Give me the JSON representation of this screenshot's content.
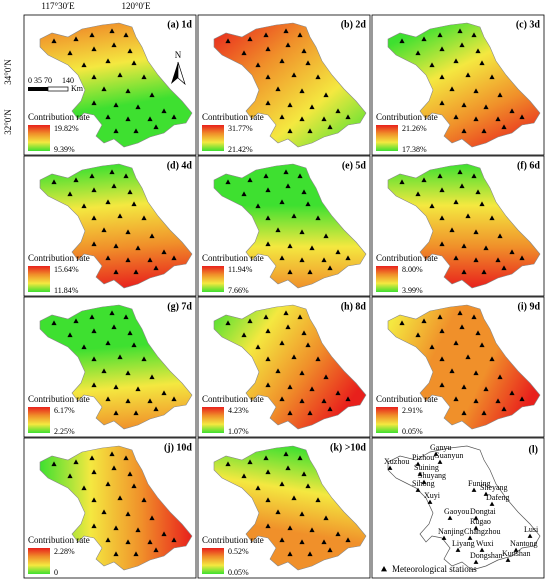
{
  "axes": {
    "top": [
      "117°30′E",
      "120°0′E"
    ],
    "left": [
      "34°0′N",
      "32°0′N"
    ]
  },
  "scale_bar": {
    "ticks": "0 35 70",
    "end": "140",
    "unit": "Km"
  },
  "north": "N",
  "panels": [
    {
      "label": "(a) 1d",
      "legend_title": "Contribution rate",
      "max": "19.82%",
      "min": "9.39%"
    },
    {
      "label": "(b) 2d",
      "legend_title": "Contribution rate",
      "max": "31.77%",
      "min": "21.42%"
    },
    {
      "label": "(c) 3d",
      "legend_title": "Contribution rate",
      "max": "21.26%",
      "min": "17.38%"
    },
    {
      "label": "(d) 4d",
      "legend_title": "Contribution rate",
      "max": "15.64%",
      "min": "11.84%"
    },
    {
      "label": "(e) 5d",
      "legend_title": "Contribution rate",
      "max": "11.94%",
      "min": "7.66%"
    },
    {
      "label": "(f) 6d",
      "legend_title": "Contribution rate",
      "max": "8.00%",
      "min": "3.99%"
    },
    {
      "label": "(g) 7d",
      "legend_title": "Contribution rate",
      "max": "6.17%",
      "min": "2.25%"
    },
    {
      "label": "(h) 8d",
      "legend_title": "Contribution rate",
      "max": "4.23%",
      "min": "1.07%"
    },
    {
      "label": "(i) 9d",
      "legend_title": "Contribution rate",
      "max": "2.91%",
      "min": "0.05%"
    },
    {
      "label": "(j) 10d",
      "legend_title": "Contribution rate",
      "max": "2.28%",
      "min": "0"
    },
    {
      "label": "(k) >10d",
      "legend_title": "Contribution rate",
      "max": "0.52%",
      "min": "0.05%"
    }
  ],
  "station_panel": {
    "label": "(l)",
    "legend": "Meteorological stations",
    "stations": [
      "Ganyu",
      "Xuzhou",
      "Pizhou",
      "Guanyun",
      "Suining",
      "Shuyang",
      "Sihong",
      "Xuyi",
      "Funing",
      "Sheyang",
      "Dafeng",
      "Gaoyou",
      "Dongtai",
      "Rugao",
      "Nanjing",
      "Changzhou",
      "Lusi",
      "Nantong",
      "Liyang",
      "Wuxi",
      "Dongshan",
      "Kunshan"
    ]
  }
}
